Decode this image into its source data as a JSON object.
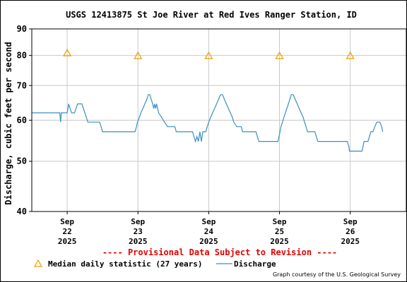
{
  "chart_data": {
    "type": "line",
    "title": "USGS 12413875 St Joe River at Red Ives Ranger Station, ID",
    "ylabel": "Discharge, cubic feet per second",
    "xlabel": "",
    "yscale": "log",
    "ylim": [
      40,
      90
    ],
    "y_ticks": [
      40,
      50,
      60,
      70,
      80,
      90
    ],
    "xlim": [
      "2025-09-21T12:00",
      "2025-09-26T19:00"
    ],
    "x_ticks": [
      {
        "at": "2025-09-22T00:00",
        "lines": [
          "Sep",
          "22",
          "2025"
        ]
      },
      {
        "at": "2025-09-23T00:00",
        "lines": [
          "Sep",
          "23",
          "2025"
        ]
      },
      {
        "at": "2025-09-24T00:00",
        "lines": [
          "Sep",
          "24",
          "2025"
        ]
      },
      {
        "at": "2025-09-25T00:00",
        "lines": [
          "Sep",
          "25",
          "2025"
        ]
      },
      {
        "at": "2025-09-26T00:00",
        "lines": [
          "Sep",
          "26",
          "2025"
        ]
      }
    ],
    "grid": true,
    "series": [
      {
        "name": "Median daily statistic (27 years)",
        "kind": "marker",
        "marker": "triangle",
        "color": "#e8a000",
        "points": [
          {
            "x": "2025-09-22T00:00",
            "y": 81
          },
          {
            "x": "2025-09-23T00:00",
            "y": 80
          },
          {
            "x": "2025-09-24T00:00",
            "y": 80
          },
          {
            "x": "2025-09-25T00:00",
            "y": 80
          },
          {
            "x": "2025-09-26T00:00",
            "y": 80
          }
        ]
      },
      {
        "name": "Discharge",
        "kind": "line",
        "color": "#3a8fc0",
        "points": [
          {
            "x": "2025-09-21T12:00",
            "y": 62
          },
          {
            "x": "2025-09-21T21:30",
            "y": 62
          },
          {
            "x": "2025-09-21T21:45",
            "y": 59.5
          },
          {
            "x": "2025-09-21T22:00",
            "y": 62
          },
          {
            "x": "2025-09-22T00:00",
            "y": 62
          },
          {
            "x": "2025-09-22T00:15",
            "y": 63.2
          },
          {
            "x": "2025-09-22T00:30",
            "y": 64.5
          },
          {
            "x": "2025-09-22T01:00",
            "y": 63.2
          },
          {
            "x": "2025-09-22T01:30",
            "y": 62
          },
          {
            "x": "2025-09-22T02:30",
            "y": 62
          },
          {
            "x": "2025-09-22T03:00",
            "y": 63.2
          },
          {
            "x": "2025-09-22T03:30",
            "y": 64.5
          },
          {
            "x": "2025-09-22T05:00",
            "y": 64.5
          },
          {
            "x": "2025-09-22T05:30",
            "y": 63.2
          },
          {
            "x": "2025-09-22T06:00",
            "y": 62
          },
          {
            "x": "2025-09-22T06:30",
            "y": 60.8
          },
          {
            "x": "2025-09-22T07:00",
            "y": 59.5
          },
          {
            "x": "2025-09-22T11:00",
            "y": 59.5
          },
          {
            "x": "2025-09-22T11:30",
            "y": 58.3
          },
          {
            "x": "2025-09-22T12:00",
            "y": 57
          },
          {
            "x": "2025-09-22T23:00",
            "y": 57
          },
          {
            "x": "2025-09-22T23:30",
            "y": 58.3
          },
          {
            "x": "2025-09-22T23:50",
            "y": 59.5
          },
          {
            "x": "2025-09-23T00:30",
            "y": 60.8
          },
          {
            "x": "2025-09-23T01:00",
            "y": 62
          },
          {
            "x": "2025-09-23T01:40",
            "y": 63.2
          },
          {
            "x": "2025-09-23T02:20",
            "y": 64.5
          },
          {
            "x": "2025-09-23T03:00",
            "y": 65.8
          },
          {
            "x": "2025-09-23T03:30",
            "y": 67.2
          },
          {
            "x": "2025-09-23T04:00",
            "y": 67.2
          },
          {
            "x": "2025-09-23T04:30",
            "y": 65.8
          },
          {
            "x": "2025-09-23T05:00",
            "y": 64.5
          },
          {
            "x": "2025-09-23T05:20",
            "y": 63.2
          },
          {
            "x": "2025-09-23T05:40",
            "y": 64.5
          },
          {
            "x": "2025-09-23T06:00",
            "y": 63.2
          },
          {
            "x": "2025-09-23T06:20",
            "y": 64.5
          },
          {
            "x": "2025-09-23T06:40",
            "y": 63.2
          },
          {
            "x": "2025-09-23T07:00",
            "y": 62
          },
          {
            "x": "2025-09-23T08:00",
            "y": 60.8
          },
          {
            "x": "2025-09-23T09:00",
            "y": 59.5
          },
          {
            "x": "2025-09-23T10:00",
            "y": 58.3
          },
          {
            "x": "2025-09-23T12:30",
            "y": 58.3
          },
          {
            "x": "2025-09-23T13:00",
            "y": 57
          },
          {
            "x": "2025-09-23T18:30",
            "y": 57
          },
          {
            "x": "2025-09-23T19:00",
            "y": 55.8
          },
          {
            "x": "2025-09-23T19:30",
            "y": 54.6
          },
          {
            "x": "2025-09-23T20:00",
            "y": 55.8
          },
          {
            "x": "2025-09-23T20:30",
            "y": 54.6
          },
          {
            "x": "2025-09-23T21:00",
            "y": 57
          },
          {
            "x": "2025-09-23T21:30",
            "y": 54.6
          },
          {
            "x": "2025-09-23T22:00",
            "y": 57
          },
          {
            "x": "2025-09-23T23:00",
            "y": 57
          },
          {
            "x": "2025-09-23T23:30",
            "y": 58.3
          },
          {
            "x": "2025-09-24T00:00",
            "y": 59.5
          },
          {
            "x": "2025-09-24T00:40",
            "y": 60.8
          },
          {
            "x": "2025-09-24T01:20",
            "y": 62
          },
          {
            "x": "2025-09-24T02:00",
            "y": 63.2
          },
          {
            "x": "2025-09-24T02:40",
            "y": 64.5
          },
          {
            "x": "2025-09-24T03:20",
            "y": 65.8
          },
          {
            "x": "2025-09-24T04:00",
            "y": 67.2
          },
          {
            "x": "2025-09-24T04:40",
            "y": 67.2
          },
          {
            "x": "2025-09-24T05:20",
            "y": 65.8
          },
          {
            "x": "2025-09-24T06:00",
            "y": 64.5
          },
          {
            "x": "2025-09-24T06:40",
            "y": 63.2
          },
          {
            "x": "2025-09-24T07:20",
            "y": 62
          },
          {
            "x": "2025-09-24T08:00",
            "y": 60.8
          },
          {
            "x": "2025-09-24T08:30",
            "y": 59.5
          },
          {
            "x": "2025-09-24T09:30",
            "y": 58.3
          },
          {
            "x": "2025-09-24T11:00",
            "y": 58.3
          },
          {
            "x": "2025-09-24T11:30",
            "y": 57
          },
          {
            "x": "2025-09-24T16:00",
            "y": 57
          },
          {
            "x": "2025-09-24T16:30",
            "y": 55.8
          },
          {
            "x": "2025-09-24T17:00",
            "y": 54.6
          },
          {
            "x": "2025-09-24T23:30",
            "y": 54.6
          },
          {
            "x": "2025-09-24T23:50",
            "y": 55.8
          },
          {
            "x": "2025-09-25T00:10",
            "y": 57
          },
          {
            "x": "2025-09-25T00:30",
            "y": 58.3
          },
          {
            "x": "2025-09-25T01:00",
            "y": 59.5
          },
          {
            "x": "2025-09-25T01:30",
            "y": 60.8
          },
          {
            "x": "2025-09-25T02:00",
            "y": 62
          },
          {
            "x": "2025-09-25T02:30",
            "y": 63.2
          },
          {
            "x": "2025-09-25T03:00",
            "y": 64.5
          },
          {
            "x": "2025-09-25T03:30",
            "y": 65.8
          },
          {
            "x": "2025-09-25T04:00",
            "y": 67.2
          },
          {
            "x": "2025-09-25T04:40",
            "y": 67.2
          },
          {
            "x": "2025-09-25T05:20",
            "y": 65.8
          },
          {
            "x": "2025-09-25T06:00",
            "y": 64.5
          },
          {
            "x": "2025-09-25T06:40",
            "y": 63.2
          },
          {
            "x": "2025-09-25T07:20",
            "y": 62
          },
          {
            "x": "2025-09-25T08:00",
            "y": 60.8
          },
          {
            "x": "2025-09-25T08:30",
            "y": 59.5
          },
          {
            "x": "2025-09-25T09:00",
            "y": 58.3
          },
          {
            "x": "2025-09-25T09:30",
            "y": 57
          },
          {
            "x": "2025-09-25T12:00",
            "y": 57
          },
          {
            "x": "2025-09-25T12:30",
            "y": 55.8
          },
          {
            "x": "2025-09-25T13:00",
            "y": 54.6
          },
          {
            "x": "2025-09-25T23:00",
            "y": 54.6
          },
          {
            "x": "2025-09-25T23:30",
            "y": 53.4
          },
          {
            "x": "2025-09-25T23:45",
            "y": 52.3
          },
          {
            "x": "2025-09-26T04:00",
            "y": 52.3
          },
          {
            "x": "2025-09-26T04:20",
            "y": 53.4
          },
          {
            "x": "2025-09-26T04:40",
            "y": 54.6
          },
          {
            "x": "2025-09-26T06:00",
            "y": 54.6
          },
          {
            "x": "2025-09-26T06:30",
            "y": 55.8
          },
          {
            "x": "2025-09-26T07:00",
            "y": 57
          },
          {
            "x": "2025-09-26T07:40",
            "y": 57
          },
          {
            "x": "2025-09-26T08:20",
            "y": 58.3
          },
          {
            "x": "2025-09-26T09:00",
            "y": 59.5
          },
          {
            "x": "2025-09-26T10:00",
            "y": 59.5
          },
          {
            "x": "2025-09-26T10:40",
            "y": 58.3
          },
          {
            "x": "2025-09-26T11:00",
            "y": 57
          }
        ]
      }
    ],
    "annotations": {
      "provisional_notice": "---- Provisional Data Subject to Revision ----",
      "credit": "Graph courtesy of the U.S. Geological Survey"
    },
    "legend": {
      "placement": "bottom-left",
      "entries": [
        {
          "label": "Median daily statistic (27 years)",
          "marker": "triangle",
          "color": "#e8a000"
        },
        {
          "label": "Discharge",
          "marker": "line",
          "color": "#3a8fc0"
        }
      ]
    },
    "colors": {
      "grid": "#c8c8c8",
      "axis": "#000000",
      "provisional_notice": "#e00000"
    }
  }
}
